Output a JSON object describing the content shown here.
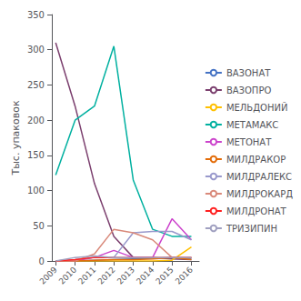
{
  "chart_data": {
    "type": "line",
    "x": [
      2009,
      2010,
      2011,
      2012,
      2013,
      2014,
      2015,
      2016
    ],
    "xlim": [
      2008.8,
      2016.4
    ],
    "xticks": [
      2009,
      2010,
      2011,
      2012,
      2013,
      2014,
      2015,
      2016
    ],
    "ylim": [
      0,
      350
    ],
    "yticks": [
      0,
      50,
      100,
      150,
      200,
      250,
      300,
      350
    ],
    "ylabel": "Тыс. упаковок",
    "grid": false,
    "legend": "right",
    "series": [
      {
        "name": "ВАЗОНАТ",
        "color": "#4472C4",
        "values": [
          0,
          0,
          1,
          2,
          3,
          4,
          5,
          4
        ]
      },
      {
        "name": "ВАЗОПРО",
        "color": "#7B3F6E",
        "values": [
          310,
          220,
          110,
          35,
          5,
          5,
          3,
          2
        ]
      },
      {
        "name": "МЕЛЬДОНИЙ",
        "color": "#FFC000",
        "values": [
          0,
          0,
          0,
          0,
          0,
          0,
          1,
          20
        ]
      },
      {
        "name": "МЕТАМАКС",
        "color": "#00B0A0",
        "values": [
          122,
          200,
          220,
          305,
          115,
          45,
          35,
          35
        ]
      },
      {
        "name": "МЕТОНАТ",
        "color": "#CC44CC",
        "values": [
          0,
          0,
          5,
          15,
          5,
          5,
          60,
          30
        ]
      },
      {
        "name": "МИЛДРАКОР",
        "color": "#E36C09",
        "values": [
          0,
          0,
          1,
          2,
          2,
          3,
          5,
          2
        ]
      },
      {
        "name": "МИЛДРАЛЕКС",
        "color": "#9999CC",
        "values": [
          0,
          2,
          5,
          5,
          40,
          42,
          42,
          30
        ]
      },
      {
        "name": "МИЛДРОКАРД",
        "color": "#D9897A",
        "values": [
          0,
          0,
          10,
          45,
          40,
          30,
          5,
          5
        ]
      },
      {
        "name": "МИЛДРОНАТ",
        "color": "#FF2020",
        "values": [
          0,
          2,
          5,
          5,
          5,
          5,
          5,
          5
        ]
      },
      {
        "name": "ТРИЗИПИН",
        "color": "#A0A0C0",
        "values": [
          0,
          5,
          7,
          5,
          5,
          5,
          5,
          5
        ]
      }
    ]
  }
}
